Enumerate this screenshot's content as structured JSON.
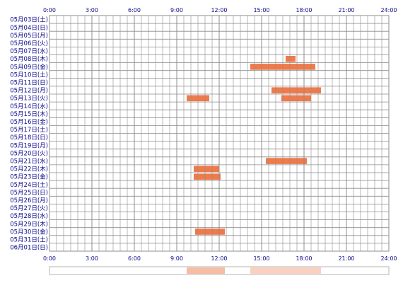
{
  "chart_data": {
    "type": "heatmap",
    "x_ticks": [
      "0:00",
      "3:00",
      "6:00",
      "9:00",
      "12:00",
      "15:00",
      "18:00",
      "21:00",
      "24:00"
    ],
    "x_range_hours": [
      0,
      24
    ],
    "grid": true,
    "days": [
      "05月03日(土)",
      "05月04日(日)",
      "05月05日(月)",
      "05月06日(火)",
      "05月07日(水)",
      "05月08日(木)",
      "05月09日(金)",
      "05月10日(土)",
      "05月11日(日)",
      "05月12日(月)",
      "05月13日(火)",
      "05月14日(水)",
      "05月15日(木)",
      "05月16日(金)",
      "05月17日(土)",
      "05月18日(日)",
      "05月19日(月)",
      "05月20日(火)",
      "05月21日(水)",
      "05月22日(木)",
      "05月23日(金)",
      "05月24日(土)",
      "05月25日(日)",
      "05月26日(月)",
      "05月27日(火)",
      "05月28日(水)",
      "05月29日(木)",
      "05月30日(金)",
      "05月31日(土)",
      "06月01日(日)"
    ],
    "activity": [
      {
        "day": "05月08日(木)",
        "start": 16.7,
        "end": 17.4
      },
      {
        "day": "05月09日(金)",
        "start": 14.2,
        "end": 18.8
      },
      {
        "day": "05月12日(月)",
        "start": 15.7,
        "end": 19.2
      },
      {
        "day": "05月13日(火)",
        "start": 9.7,
        "end": 11.3
      },
      {
        "day": "05月13日(火)",
        "start": 16.4,
        "end": 18.5
      },
      {
        "day": "05月21日(水)",
        "start": 15.3,
        "end": 18.2
      },
      {
        "day": "05月22日(木)",
        "start": 10.2,
        "end": 12.0
      },
      {
        "day": "05月23日(金)",
        "start": 10.2,
        "end": 12.1
      },
      {
        "day": "05月30日(金)",
        "start": 10.3,
        "end": 12.4
      }
    ],
    "summary_strip": [
      {
        "start": 9.7,
        "end": 12.4,
        "intensity": 0.5
      },
      {
        "start": 14.2,
        "end": 19.2,
        "intensity": 0.35
      }
    ],
    "bar_color": "#f07a4a",
    "grid_color": "#8c8c8c",
    "label_color": "#0a0a8a"
  }
}
